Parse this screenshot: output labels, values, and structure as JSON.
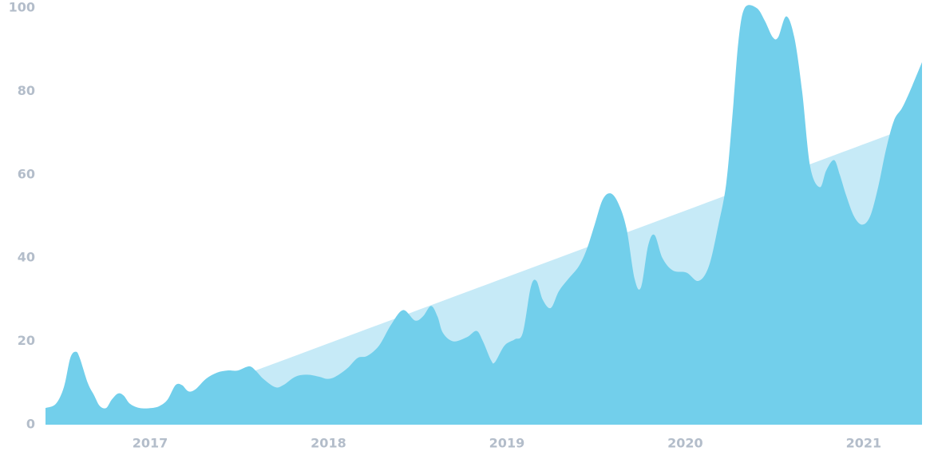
{
  "chart_data": {
    "type": "area",
    "x": [
      2016.414,
      2016.472,
      2016.517,
      2016.553,
      2016.584,
      2016.606,
      2016.651,
      2016.687,
      2016.718,
      2016.754,
      2016.785,
      2016.821,
      2016.852,
      2016.888,
      2016.942,
      2017.009,
      2017.054,
      2017.098,
      2017.143,
      2017.179,
      2017.215,
      2017.255,
      2017.313,
      2017.376,
      2017.434,
      2017.492,
      2017.555,
      2017.591,
      2017.635,
      2017.702,
      2017.747,
      2017.814,
      2017.881,
      2017.949,
      2017.993,
      2018.038,
      2018.105,
      2018.163,
      2018.217,
      2018.284,
      2018.351,
      2018.418,
      2018.485,
      2018.53,
      2018.575,
      2018.611,
      2018.642,
      2018.7,
      2018.776,
      2018.83,
      2018.866,
      2018.911,
      2018.933,
      2018.987,
      2019.045,
      2019.089,
      2019.134,
      2019.166,
      2019.201,
      2019.246,
      2019.291,
      2019.345,
      2019.403,
      2019.447,
      2019.492,
      2019.537,
      2019.582,
      2019.626,
      2019.671,
      2019.716,
      2019.752,
      2019.792,
      2019.828,
      2019.872,
      2019.931,
      2020.007,
      2020.074,
      2020.132,
      2020.186,
      2020.23,
      2020.266,
      2020.298,
      2020.333,
      2020.4,
      2020.445,
      2020.49,
      2020.521,
      2020.566,
      2020.611,
      2020.655,
      2020.7,
      2020.754,
      2020.79,
      2020.834,
      2020.866,
      2020.902,
      2020.946,
      2020.991,
      2021.036,
      2021.081,
      2021.125,
      2021.17,
      2021.215,
      2021.259,
      2021.327
    ],
    "series": [
      {
        "color": "#c6eaf7",
        "x": [
          2017.591,
          2021.327
        ],
        "values": [
          13,
          72.5
        ]
      },
      {
        "color": "#72cfeb",
        "values": [
          4,
          5,
          9,
          16,
          17.5,
          16,
          10,
          7,
          4.5,
          4,
          6,
          7.5,
          7,
          5,
          4,
          4,
          4.5,
          6,
          9.5,
          9.5,
          8,
          8.5,
          11,
          12.5,
          13,
          13,
          14,
          13,
          11,
          9,
          9.5,
          11.5,
          12,
          11.5,
          11,
          11.5,
          13.5,
          16,
          16.5,
          19,
          24,
          27.5,
          25,
          26,
          28.5,
          26,
          22,
          20,
          21,
          22.5,
          20,
          15.5,
          15,
          19,
          20.5,
          22,
          33,
          34.5,
          30,
          28,
          32,
          35,
          38,
          42,
          48,
          54,
          55.5,
          53,
          47,
          35,
          33,
          43,
          45.5,
          40,
          37,
          36.5,
          34.5,
          38,
          48,
          58,
          75,
          92,
          100,
          100,
          97,
          93,
          93,
          98,
          93,
          80,
          62,
          57,
          61,
          63.5,
          60,
          55,
          50,
          48,
          50,
          57,
          66,
          73,
          76,
          80,
          87
        ]
      }
    ],
    "xlim": [
      2016.414,
      2021.327
    ],
    "xticks": [
      2017,
      2018,
      2019,
      2020,
      2021
    ],
    "ylim": [
      0,
      100
    ],
    "yticks": [
      0,
      20,
      40,
      60,
      80,
      100
    ],
    "grid": false
  }
}
